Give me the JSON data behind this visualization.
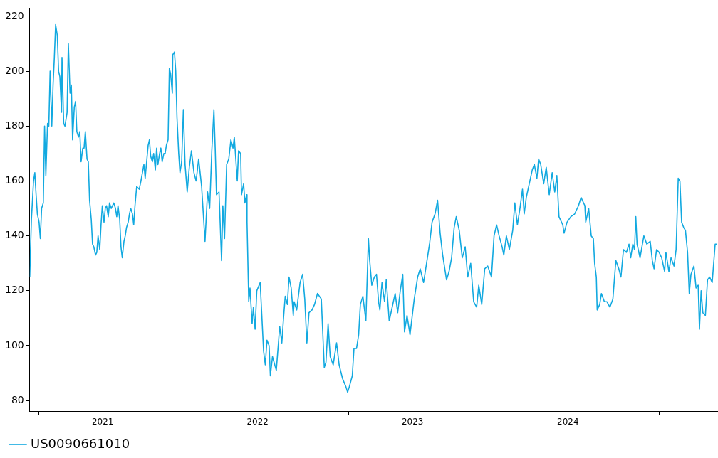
{
  "chart_data": {
    "type": "line",
    "legend": "bottom left",
    "grid": false,
    "marker": "none",
    "line_style": "solid",
    "xlim": [
      "2020-12-10",
      "2025-05-18"
    ],
    "xticks": [
      {
        "value": "2021-01-01",
        "label": null
      },
      {
        "value": "2021-05-31",
        "label": "2021"
      },
      {
        "value": "2022-01-01",
        "label": null
      },
      {
        "value": "2022-05-31",
        "label": "2022"
      },
      {
        "value": "2023-01-01",
        "label": null
      },
      {
        "value": "2023-05-31",
        "label": "2023"
      },
      {
        "value": "2024-01-01",
        "label": null
      },
      {
        "value": "2024-05-31",
        "label": "2024"
      },
      {
        "value": "2025-01-01",
        "label": null
      }
    ],
    "ylim": [
      76,
      223
    ],
    "yticks": [
      80,
      100,
      120,
      140,
      160,
      180,
      200,
      220
    ],
    "series": [
      {
        "name": "US0090661010",
        "color": "#12a9e0",
        "x": [
          "2020-12-10",
          "2020-12-14",
          "2020-12-19",
          "2020-12-22",
          "2020-12-25",
          "2020-12-28",
          "2021-01-01",
          "2021-01-04",
          "2021-01-07",
          "2021-01-11",
          "2021-01-14",
          "2021-01-17",
          "2021-01-21",
          "2021-01-24",
          "2021-01-27",
          "2021-01-31",
          "2021-02-03",
          "2021-02-06",
          "2021-02-09",
          "2021-02-13",
          "2021-02-16",
          "2021-02-19",
          "2021-02-23",
          "2021-02-24",
          "2021-02-28",
          "2021-03-03",
          "2021-03-08",
          "2021-03-11",
          "2021-03-15",
          "2021-03-18",
          "2021-03-21",
          "2021-03-25",
          "2021-03-28",
          "2021-03-31",
          "2021-04-04",
          "2021-04-07",
          "2021-04-10",
          "2021-04-14",
          "2021-04-17",
          "2021-04-20",
          "2021-04-24",
          "2021-04-27",
          "2021-04-30",
          "2021-05-04",
          "2021-05-07",
          "2021-05-10",
          "2021-05-14",
          "2021-05-17",
          "2021-05-20",
          "2021-05-24",
          "2021-05-27",
          "2021-05-30",
          "2021-06-03",
          "2021-06-06",
          "2021-06-09",
          "2021-06-13",
          "2021-06-16",
          "2021-06-20",
          "2021-06-23",
          "2021-06-26",
          "2021-06-30",
          "2021-07-03",
          "2021-07-06",
          "2021-07-10",
          "2021-07-13",
          "2021-07-16",
          "2021-07-20",
          "2021-07-23",
          "2021-07-26",
          "2021-07-30",
          "2021-08-02",
          "2021-08-05",
          "2021-08-09",
          "2021-08-12",
          "2021-08-15",
          "2021-08-19",
          "2021-08-25",
          "2021-08-29",
          "2021-09-05",
          "2021-09-08",
          "2021-09-15",
          "2021-09-18",
          "2021-09-21",
          "2021-09-25",
          "2021-09-28",
          "2021-10-02",
          "2021-10-05",
          "2021-10-08",
          "2021-10-12",
          "2021-10-15",
          "2021-10-18",
          "2021-10-22",
          "2021-10-25",
          "2021-10-28",
          "2021-11-01",
          "2021-11-04",
          "2021-11-07",
          "2021-11-11",
          "2021-11-12",
          "2021-11-16",
          "2021-11-19",
          "2021-11-22",
          "2021-11-26",
          "2021-11-29",
          "2021-12-03",
          "2021-12-07",
          "2021-12-11",
          "2021-12-16",
          "2021-12-21",
          "2021-12-26",
          "2022-01-01",
          "2022-01-06",
          "2022-01-12",
          "2022-01-19",
          "2022-01-27",
          "2022-02-02",
          "2022-02-07",
          "2022-02-12",
          "2022-02-17",
          "2022-02-20",
          "2022-02-23",
          "2022-03-01",
          "2022-03-07",
          "2022-03-10",
          "2022-03-14",
          "2022-03-19",
          "2022-03-24",
          "2022-03-29",
          "2022-04-03",
          "2022-04-06",
          "2022-04-13",
          "2022-04-16",
          "2022-04-21",
          "2022-04-23",
          "2022-04-28",
          "2022-05-01",
          "2022-05-05",
          "2022-05-06",
          "2022-05-10",
          "2022-05-13",
          "2022-05-18",
          "2022-05-21",
          "2022-05-25",
          "2022-05-29",
          "2022-06-06",
          "2022-06-14",
          "2022-06-18",
          "2022-06-22",
          "2022-06-27",
          "2022-06-30",
          "2022-07-05",
          "2022-07-14",
          "2022-07-22",
          "2022-07-27",
          "2022-07-31",
          "2022-08-04",
          "2022-08-09",
          "2022-08-13",
          "2022-08-18",
          "2022-08-23",
          "2022-08-25",
          "2022-08-31",
          "2022-09-08",
          "2022-09-14",
          "2022-09-19",
          "2022-09-24",
          "2022-09-29",
          "2022-10-06",
          "2022-10-12",
          "2022-10-19",
          "2022-10-28",
          "2022-11-04",
          "2022-11-08",
          "2022-11-13",
          "2022-11-18",
          "2022-11-25",
          "2022-12-03",
          "2022-12-09",
          "2022-12-17",
          "2022-12-25",
          "2022-12-29",
          "2023-01-02",
          "2023-01-09",
          "2023-01-13",
          "2023-01-19",
          "2023-01-24",
          "2023-01-28",
          "2023-02-03",
          "2023-02-10",
          "2023-02-16",
          "2023-02-19",
          "2023-02-24",
          "2023-03-02",
          "2023-03-07",
          "2023-03-12",
          "2023-03-15",
          "2023-03-20",
          "2023-03-26",
          "2023-03-30",
          "2023-04-06",
          "2023-04-13",
          "2023-04-20",
          "2023-04-26",
          "2023-05-02",
          "2023-05-08",
          "2023-05-12",
          "2023-05-18",
          "2023-05-25",
          "2023-06-04",
          "2023-06-12",
          "2023-06-18",
          "2023-06-26",
          "2023-07-04",
          "2023-07-10",
          "2023-07-16",
          "2023-07-23",
          "2023-07-29",
          "2023-08-04",
          "2023-08-10",
          "2023-08-19",
          "2023-08-25",
          "2023-08-31",
          "2023-09-06",
          "2023-09-11",
          "2023-09-18",
          "2023-09-25",
          "2023-10-02",
          "2023-10-08",
          "2023-10-15",
          "2023-10-22",
          "2023-10-29",
          "2023-11-03",
          "2023-11-10",
          "2023-11-17",
          "2023-11-24",
          "2023-12-03",
          "2023-12-09",
          "2023-12-15",
          "2023-12-21",
          "2023-12-28",
          "2024-01-01",
          "2024-01-07",
          "2024-01-14",
          "2024-01-22",
          "2024-01-27",
          "2024-02-02",
          "2024-02-08",
          "2024-02-14",
          "2024-02-18",
          "2024-02-23",
          "2024-03-01",
          "2024-03-08",
          "2024-03-13",
          "2024-03-19",
          "2024-03-23",
          "2024-03-28",
          "2024-04-04",
          "2024-04-10",
          "2024-04-17",
          "2024-04-24",
          "2024-04-30",
          "2024-05-05",
          "2024-05-10",
          "2024-05-19",
          "2024-05-22",
          "2024-05-29",
          "2024-06-07",
          "2024-06-16",
          "2024-06-25",
          "2024-07-01",
          "2024-07-10",
          "2024-07-12",
          "2024-07-19",
          "2024-07-25",
          "2024-07-30",
          "2024-08-02",
          "2024-08-06",
          "2024-08-08",
          "2024-08-14",
          "2024-08-18",
          "2024-08-25",
          "2024-08-31",
          "2024-09-07",
          "2024-09-14",
          "2024-09-21",
          "2024-09-28",
          "2024-10-03",
          "2024-10-09",
          "2024-10-16",
          "2024-10-22",
          "2024-10-26",
          "2024-10-31",
          "2024-11-04",
          "2024-11-07",
          "2024-11-10",
          "2024-11-17",
          "2024-11-26",
          "2024-12-03",
          "2024-12-11",
          "2024-12-16",
          "2024-12-20",
          "2024-12-26",
          "2025-01-01",
          "2025-01-07",
          "2025-01-14",
          "2025-01-17",
          "2025-01-24",
          "2025-01-29",
          "2025-02-05",
          "2025-02-10",
          "2025-02-15",
          "2025-02-19",
          "2025-02-23",
          "2025-02-28",
          "2025-03-04",
          "2025-03-09",
          "2025-03-13",
          "2025-03-17",
          "2025-03-24",
          "2025-03-29",
          "2025-04-03",
          "2025-04-06",
          "2025-04-10",
          "2025-04-14",
          "2025-04-20",
          "2025-04-25",
          "2025-04-30",
          "2025-05-06",
          "2025-05-13",
          "2025-05-18"
        ],
        "values": [
          125,
          146,
          160,
          163,
          155,
          148,
          145,
          139,
          150,
          152,
          180,
          162,
          181,
          180,
          200,
          180,
          195,
          205,
          217,
          213,
          200,
          198,
          185,
          205,
          181,
          180,
          185,
          210,
          192,
          195,
          175,
          187,
          189,
          178,
          176,
          178,
          167,
          172,
          172,
          178,
          168,
          167,
          153,
          146,
          137,
          136,
          133,
          134,
          140,
          135,
          144,
          151,
          145,
          150,
          151,
          147,
          152,
          150,
          151,
          152,
          150,
          147,
          151,
          146,
          136,
          132,
          138,
          140,
          143,
          145,
          148,
          150,
          148,
          144,
          151,
          158,
          157,
          160,
          166,
          161,
          173,
          175,
          169,
          167,
          170,
          164,
          172,
          166,
          170,
          172,
          167,
          170,
          170,
          173,
          175,
          201,
          199,
          192,
          206,
          207,
          200,
          183,
          170,
          163,
          167,
          186,
          166,
          156,
          165,
          171,
          163,
          160,
          168,
          158,
          138,
          156,
          150,
          171,
          186,
          172,
          155,
          156,
          131,
          151,
          139,
          166,
          168,
          175,
          172,
          176,
          160,
          171,
          170,
          155,
          159,
          152,
          155,
          145,
          116,
          121,
          108,
          114,
          106,
          120,
          123,
          98,
          93,
          102,
          100,
          89,
          96,
          91,
          107,
          101,
          110,
          118,
          115,
          125,
          121,
          111,
          116,
          113,
          123,
          126,
          117,
          101,
          112,
          113,
          115,
          119,
          117,
          92,
          94,
          108,
          96,
          93,
          101,
          93,
          88,
          85,
          83,
          85,
          89,
          99,
          99,
          104,
          115,
          118,
          109,
          139,
          131,
          122,
          125,
          126,
          116,
          113,
          123,
          116,
          124,
          109,
          114,
          119,
          112,
          120,
          126,
          105,
          111,
          104,
          117,
          125,
          128,
          123,
          131,
          137,
          145,
          148,
          153,
          141,
          133,
          124,
          127,
          132,
          143,
          147,
          142,
          132,
          136,
          125,
          130,
          116,
          114,
          122,
          115,
          128,
          129,
          125,
          140,
          144,
          140,
          136,
          133,
          140,
          135,
          142,
          152,
          144,
          150,
          157,
          148,
          154,
          159,
          164,
          166,
          161,
          168,
          166,
          159,
          165,
          155,
          163,
          156,
          162,
          147,
          144,
          141,
          145,
          147,
          148,
          151,
          154,
          151,
          145,
          150,
          140,
          139,
          130,
          125,
          113,
          115,
          119,
          116,
          116,
          114,
          117,
          131,
          128,
          125,
          135,
          134,
          137,
          132,
          137,
          135,
          147,
          137,
          132,
          140,
          137,
          138,
          131,
          128,
          135,
          134,
          132,
          127,
          134,
          127,
          132,
          129,
          135,
          161,
          160,
          145,
          143,
          142,
          134,
          119,
          126,
          129,
          121,
          122,
          106,
          120,
          112,
          111,
          124,
          125,
          123,
          137,
          137
        ]
      }
    ]
  }
}
